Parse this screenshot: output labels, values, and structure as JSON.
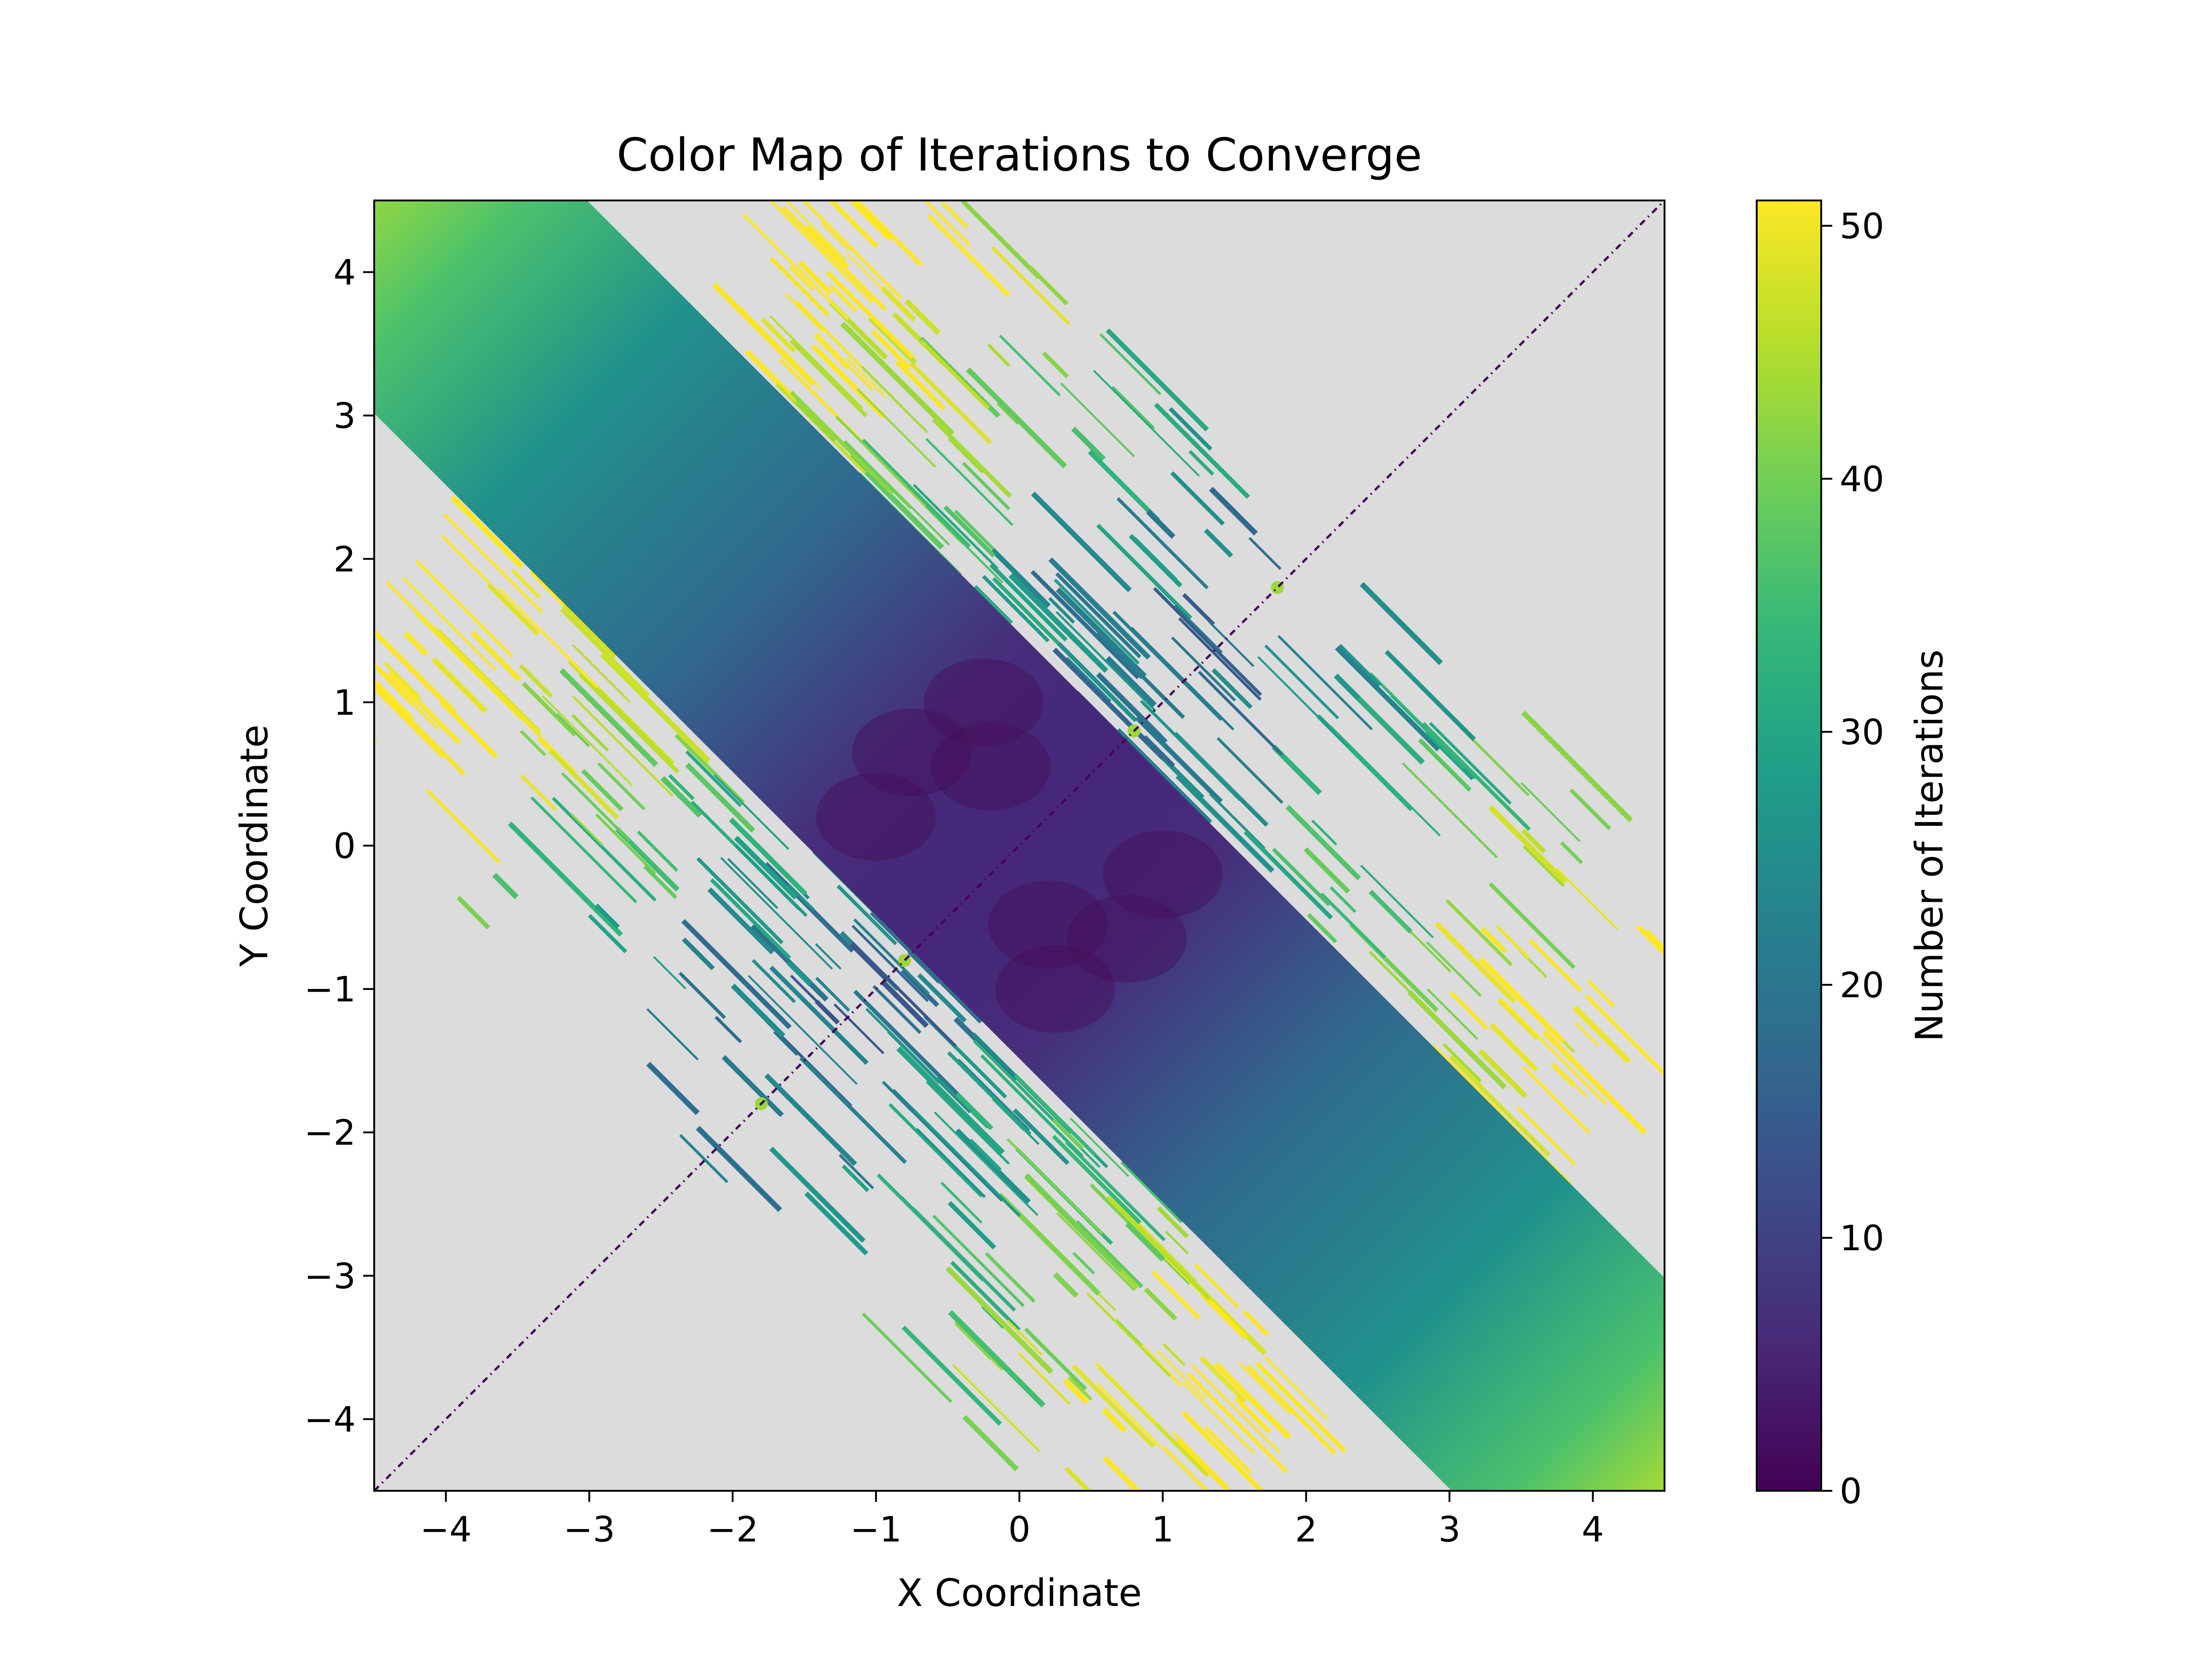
{
  "chart_data": {
    "type": "heatmap",
    "title": "Color Map of Iterations to Converge",
    "xlabel": "X Coordinate",
    "ylabel": "Y Coordinate",
    "xlim": [
      -4.5,
      4.5
    ],
    "ylim": [
      -4.5,
      4.5
    ],
    "x_ticks": [
      -4,
      -3,
      -2,
      -1,
      0,
      1,
      2,
      3,
      4
    ],
    "y_ticks": [
      -4,
      -3,
      -2,
      -1,
      0,
      1,
      2,
      3,
      4
    ],
    "x_tick_labels": [
      "−4",
      "−3",
      "−2",
      "−1",
      "0",
      "1",
      "2",
      "3",
      "4"
    ],
    "y_tick_labels": [
      "−4",
      "−3",
      "−2",
      "−1",
      "0",
      "1",
      "2",
      "3",
      "4"
    ],
    "colorbar": {
      "label": "Number of Iterations",
      "range": [
        0,
        51
      ],
      "ticks": [
        0,
        10,
        20,
        30,
        40,
        50
      ],
      "tick_labels": [
        "0",
        "10",
        "20",
        "30",
        "40",
        "50"
      ],
      "colormap": "viridis"
    },
    "non_converged_color": "#dcdcdc",
    "grid": false,
    "features": {
      "converged_band": "diagonal band along y = -x, about 2.1 units wide perpendicular",
      "band_iterations_center": 5,
      "band_iterations_corners": 45,
      "diagonal_line": "thin dotted line along y = x, iterations near 0",
      "lobe_points": [
        [
          1.8,
          1.8
        ],
        [
          -1.8,
          -1.8
        ],
        [
          0.8,
          0.8
        ],
        [
          -0.8,
          -0.8
        ]
      ]
    }
  },
  "colors": {
    "viridis_stops": [
      "#440154",
      "#482878",
      "#3e4989",
      "#31688e",
      "#26828e",
      "#1f9e89",
      "#35b779",
      "#6ece58",
      "#b5de2b",
      "#fde725"
    ],
    "frame": "#000000"
  }
}
